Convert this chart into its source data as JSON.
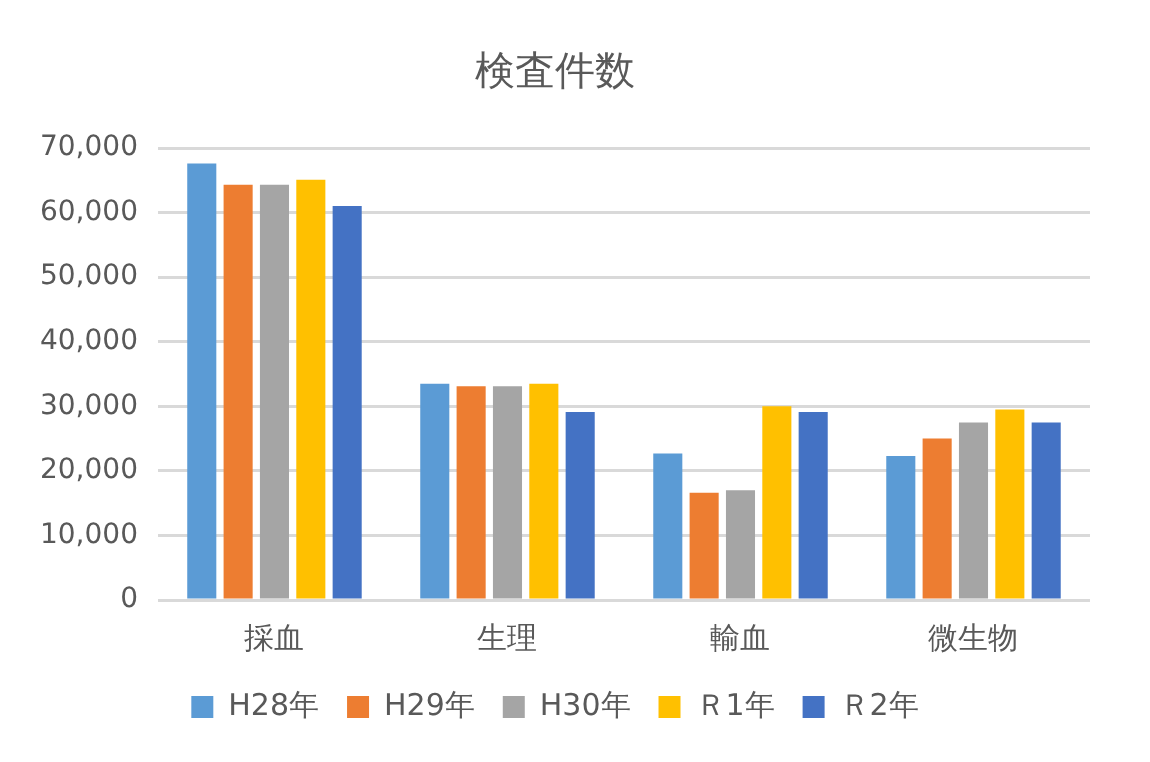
{
  "chart_data": {
    "type": "bar",
    "title": "検査件数",
    "categories": [
      "採血",
      "生理",
      "輸血",
      "微生物"
    ],
    "series": [
      {
        "name": "H28年",
        "color": "#5b9bd5",
        "values": [
          67600,
          33500,
          22700,
          22300
        ]
      },
      {
        "name": "H29年",
        "color": "#ed7d31",
        "values": [
          64300,
          33100,
          16600,
          25000
        ]
      },
      {
        "name": "H30年",
        "color": "#a5a5a5",
        "values": [
          64300,
          33100,
          17000,
          27500
        ]
      },
      {
        "name": "Ｒ1年",
        "color": "#ffc000",
        "values": [
          65100,
          33500,
          30000,
          29500
        ]
      },
      {
        "name": "Ｒ2年",
        "color": "#4472c4",
        "values": [
          61000,
          29100,
          29100,
          27500
        ]
      }
    ],
    "ylim": [
      0,
      70000
    ],
    "yticks": [
      0,
      {
        "value": 10000,
        "label": "10,000"
      },
      {
        "value": 20000,
        "label": "20,000"
      },
      {
        "value": 30000,
        "label": "30,000"
      },
      {
        "value": 40000,
        "label": "40,000"
      },
      {
        "value": 50000,
        "label": "50,000"
      },
      {
        "value": 60000,
        "label": "60,000"
      },
      {
        "value": 70000,
        "label": "70,000"
      }
    ],
    "grid": "y",
    "legend": "bottom"
  }
}
